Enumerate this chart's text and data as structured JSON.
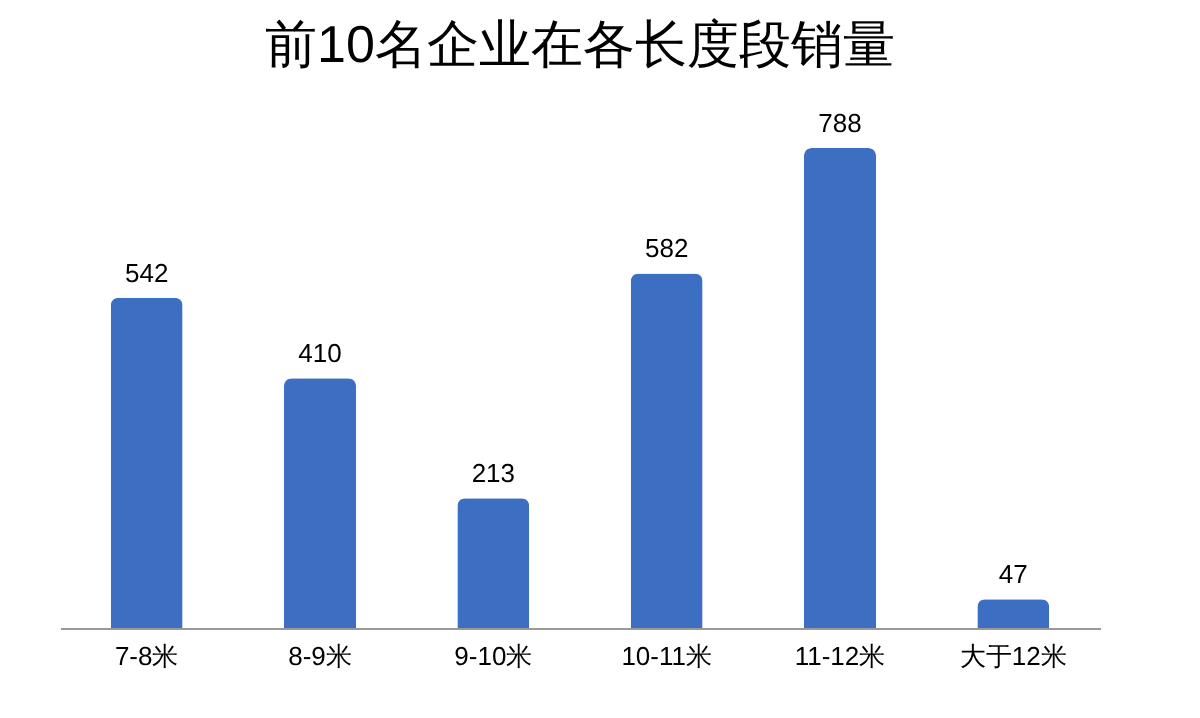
{
  "chart_data": {
    "type": "bar",
    "title": "前10名企业在各长度段销量",
    "categories": [
      "7-8米",
      "8-9米",
      "9-10米",
      "10-11米",
      "11-12米",
      "大于12米"
    ],
    "values": [
      542,
      410,
      213,
      582,
      788,
      47
    ],
    "color": "#3c6fc2",
    "data_labels": true,
    "grid": false
  }
}
